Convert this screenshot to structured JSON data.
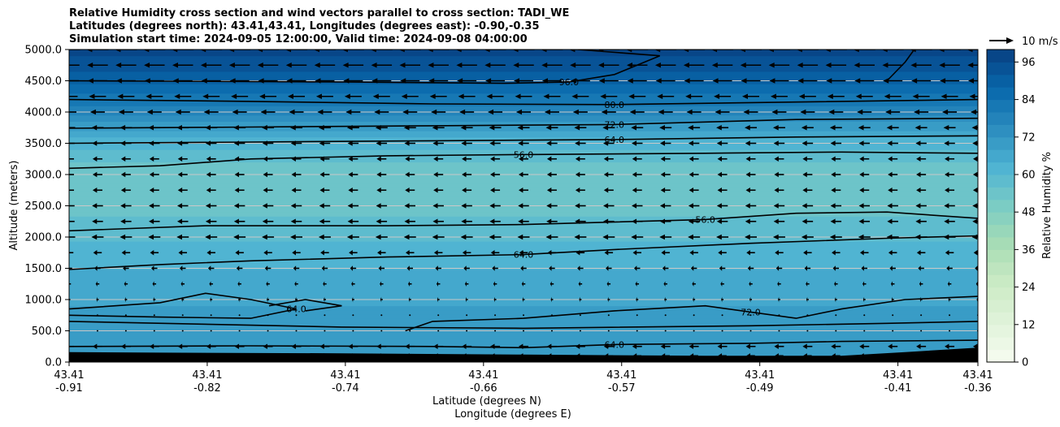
{
  "chart_data": {
    "type": "heatmap",
    "title_lines": [
      "Relative Humidity cross section and wind vectors parallel to cross section: TADI_WE",
      "Latitudes (degrees north): 43.41,43.41, Longitudes (degrees east): -0.90,-0.35",
      "Simulation start time: 2024-09-05 12:00:00, Valid time: 2024-09-08 04:00:00"
    ],
    "ylabel": "Altitude (meters)",
    "xlabel_lines": [
      "Latitude (degrees N)",
      "Longitude (degrees E)"
    ],
    "ylim": [
      0,
      5000
    ],
    "y_ticks": [
      "0.0",
      "500.0",
      "1000.0",
      "1500.0",
      "2000.0",
      "2500.0",
      "3000.0",
      "3500.0",
      "4000.0",
      "4500.0",
      "5000.0"
    ],
    "y_tick_values": [
      0,
      500,
      1000,
      1500,
      2000,
      2500,
      3000,
      3500,
      4000,
      4500,
      5000
    ],
    "grid": "horizontal",
    "x_ticks": [
      {
        "lat": "43.41",
        "lon": "-0.91"
      },
      {
        "lat": "43.41",
        "lon": "-0.82"
      },
      {
        "lat": "43.41",
        "lon": "-0.74"
      },
      {
        "lat": "43.41",
        "lon": "-0.66"
      },
      {
        "lat": "43.41",
        "lon": "-0.57"
      },
      {
        "lat": "43.41",
        "lon": "-0.49"
      },
      {
        "lat": "43.41",
        "lon": "-0.41"
      },
      {
        "lat": "43.41",
        "lon": "-0.36"
      }
    ],
    "x_tick_fractions": [
      0,
      0.152,
      0.304,
      0.456,
      0.608,
      0.76,
      0.912,
      1
    ],
    "colorbar": {
      "label": "Relative Humidity %",
      "range": [
        0,
        100
      ],
      "ticks": [
        "0",
        "12",
        "24",
        "36",
        "48",
        "60",
        "72",
        "84",
        "96"
      ],
      "tick_values": [
        0,
        12,
        24,
        36,
        48,
        60,
        72,
        84,
        96
      ],
      "colormap": "GnBu"
    },
    "rh_profile": [
      {
        "alt": 0,
        "rh": 68
      },
      {
        "alt": 250,
        "rh": 70
      },
      {
        "alt": 500,
        "rh": 72
      },
      {
        "alt": 900,
        "rh": 68
      },
      {
        "alt": 1250,
        "rh": 66
      },
      {
        "alt": 1600,
        "rh": 63
      },
      {
        "alt": 2000,
        "rh": 59
      },
      {
        "alt": 2400,
        "rh": 55
      },
      {
        "alt": 2800,
        "rh": 54
      },
      {
        "alt": 3200,
        "rh": 56
      },
      {
        "alt": 3600,
        "rh": 64
      },
      {
        "alt": 3900,
        "rh": 74
      },
      {
        "alt": 4200,
        "rh": 82
      },
      {
        "alt": 4500,
        "rh": 89
      },
      {
        "alt": 4800,
        "rh": 95
      },
      {
        "alt": 5000,
        "rh": 97
      }
    ],
    "contours": [
      {
        "label": "56.0",
        "points": [
          [
            0,
            3100
          ],
          [
            0.1,
            3140
          ],
          [
            0.2,
            3250
          ],
          [
            0.35,
            3300
          ],
          [
            0.5,
            3320
          ],
          [
            0.7,
            3340
          ],
          [
            0.85,
            3360
          ],
          [
            1,
            3340
          ]
        ]
      },
      {
        "label": "64.0",
        "points": [
          [
            0,
            3500
          ],
          [
            0.2,
            3520
          ],
          [
            0.4,
            3540
          ],
          [
            0.6,
            3560
          ],
          [
            0.8,
            3600
          ],
          [
            1,
            3620
          ]
        ]
      },
      {
        "label": "72.0",
        "points": [
          [
            0,
            3740
          ],
          [
            0.2,
            3760
          ],
          [
            0.4,
            3780
          ],
          [
            0.6,
            3800
          ],
          [
            0.8,
            3880
          ],
          [
            1,
            3900
          ]
        ]
      },
      {
        "label": "80.0",
        "points": [
          [
            0,
            4200
          ],
          [
            0.2,
            4170
          ],
          [
            0.4,
            4130
          ],
          [
            0.6,
            4120
          ],
          [
            0.8,
            4160
          ],
          [
            1,
            4200
          ]
        ]
      },
      {
        "label": "96.0",
        "points": [
          [
            0,
            4500
          ],
          [
            0.3,
            4480
          ],
          [
            0.48,
            4460
          ],
          [
            0.55,
            4480
          ],
          [
            0.6,
            4600
          ],
          [
            0.65,
            4900
          ],
          [
            0.56,
            5000
          ]
        ]
      },
      {
        "label": "",
        "points": [
          [
            0.9,
            4500
          ],
          [
            0.92,
            4800
          ],
          [
            0.93,
            5000
          ]
        ]
      },
      {
        "label": "56.0",
        "points": [
          [
            0,
            2100
          ],
          [
            0.15,
            2180
          ],
          [
            0.35,
            2180
          ],
          [
            0.5,
            2200
          ],
          [
            0.7,
            2280
          ],
          [
            0.8,
            2380
          ],
          [
            0.9,
            2400
          ],
          [
            1,
            2300
          ]
        ]
      },
      {
        "label": "64.0",
        "points": [
          [
            0,
            1480
          ],
          [
            0.1,
            1560
          ],
          [
            0.2,
            1620
          ],
          [
            0.35,
            1680
          ],
          [
            0.5,
            1720
          ],
          [
            0.6,
            1800
          ],
          [
            0.75,
            1900
          ],
          [
            0.9,
            1980
          ],
          [
            1,
            2020
          ]
        ]
      },
      {
        "label": "72.0",
        "points": [
          [
            0.37,
            500
          ],
          [
            0.4,
            650
          ],
          [
            0.5,
            700
          ],
          [
            0.6,
            820
          ],
          [
            0.7,
            900
          ],
          [
            0.75,
            800
          ],
          [
            0.8,
            700
          ],
          [
            0.85,
            850
          ],
          [
            0.92,
            1000
          ],
          [
            1,
            1050
          ]
        ]
      },
      {
        "label": "64.0",
        "points": [
          [
            0,
            850
          ],
          [
            0.1,
            950
          ],
          [
            0.15,
            1100
          ],
          [
            0.2,
            1000
          ],
          [
            0.25,
            850
          ],
          [
            0.2,
            700
          ],
          [
            0.1,
            720
          ],
          [
            0,
            750
          ]
        ]
      },
      {
        "label": "64.0",
        "points": [
          [
            0,
            250
          ],
          [
            0.2,
            260
          ],
          [
            0.4,
            250
          ],
          [
            0.5,
            230
          ],
          [
            0.6,
            280
          ],
          [
            0.75,
            300
          ],
          [
            0.85,
            330
          ],
          [
            1,
            350
          ]
        ]
      },
      {
        "label": "",
        "points": [
          [
            0,
            650
          ],
          [
            0.3,
            560
          ],
          [
            0.5,
            540
          ],
          [
            0.75,
            580
          ],
          [
            0.9,
            620
          ],
          [
            1,
            650
          ]
        ]
      },
      {
        "label": "",
        "points": [
          [
            0.22,
            900
          ],
          [
            0.26,
            1000
          ],
          [
            0.3,
            900
          ],
          [
            0.26,
            820
          ]
        ]
      }
    ],
    "wind_legend": "10 m/s",
    "wind_rows": [
      {
        "alt": 100,
        "u": -3.5
      },
      {
        "alt": 250,
        "u": -4
      },
      {
        "alt": 500,
        "u": -0.6
      },
      {
        "alt": 750,
        "u": -0.3
      },
      {
        "alt": 1000,
        "u": -1
      },
      {
        "alt": 1250,
        "u": -1.5
      },
      {
        "alt": 1500,
        "u": -2.5
      },
      {
        "alt": 1750,
        "u": -3.5
      },
      {
        "alt": 2000,
        "u": -5
      },
      {
        "alt": 2250,
        "u": -4.5
      },
      {
        "alt": 2500,
        "u": -4.5
      },
      {
        "alt": 2750,
        "u": -4
      },
      {
        "alt": 3000,
        "u": -4
      },
      {
        "alt": 3250,
        "u": -4
      },
      {
        "alt": 3500,
        "u": -4.5
      },
      {
        "alt": 3750,
        "u": -5
      },
      {
        "alt": 4000,
        "u": -6
      },
      {
        "alt": 4250,
        "u": -7
      },
      {
        "alt": 4500,
        "u": -8
      },
      {
        "alt": 4750,
        "u": -8.5
      },
      {
        "alt": 5000,
        "u": -9
      }
    ],
    "terrain": [
      {
        "x": 0,
        "alt": 160
      },
      {
        "x": 0.1,
        "alt": 150
      },
      {
        "x": 0.3,
        "alt": 140
      },
      {
        "x": 0.5,
        "alt": 120
      },
      {
        "x": 0.7,
        "alt": 100
      },
      {
        "x": 0.85,
        "alt": 100
      },
      {
        "x": 0.92,
        "alt": 160
      },
      {
        "x": 1,
        "alt": 230
      }
    ]
  }
}
